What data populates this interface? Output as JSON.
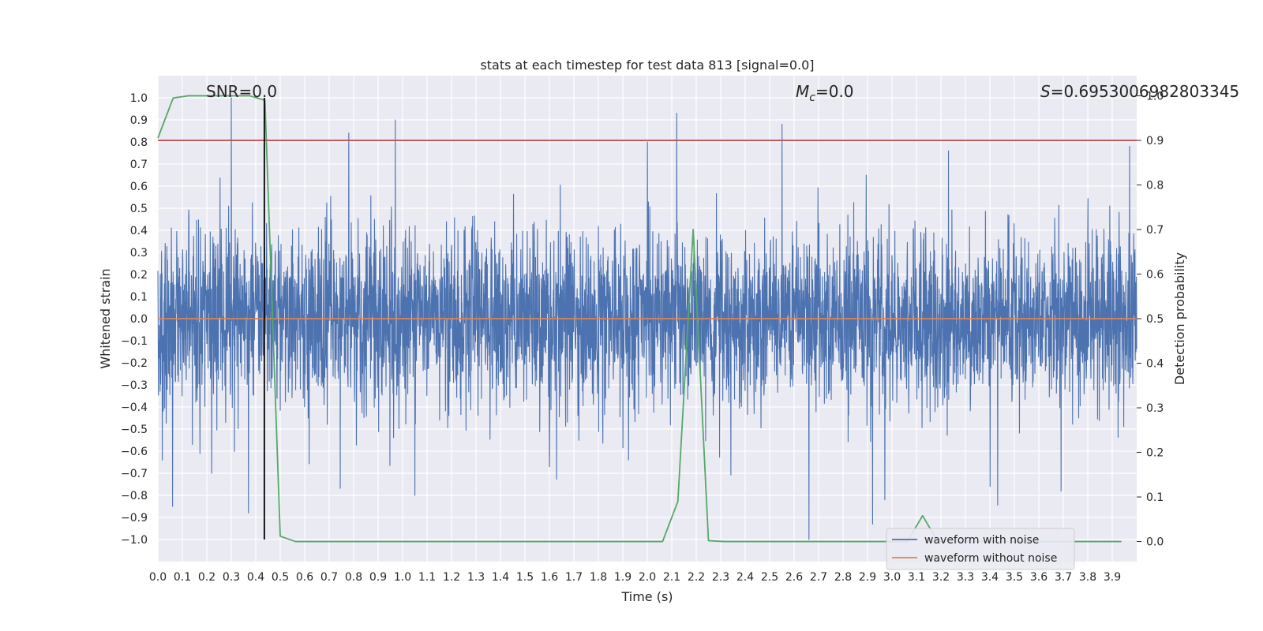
{
  "chart_data": {
    "type": "line",
    "title": "stats at each timestep for test data 813 [signal=0.0]",
    "xlabel": "Time (s)",
    "ylabel": "Whitened strain",
    "y2label": "Detection probability",
    "xlim": [
      0.0,
      4.0
    ],
    "ylim": [
      -1.1,
      1.1
    ],
    "y2lim": [
      -0.045,
      1.045
    ],
    "x_ticks": [
      0.0,
      0.1,
      0.2,
      0.3,
      0.4,
      0.5,
      0.6,
      0.7,
      0.8,
      0.9,
      1.0,
      1.1,
      1.2,
      1.3,
      1.4,
      1.5,
      1.6,
      1.7,
      1.8,
      1.9,
      2.0,
      2.1,
      2.2,
      2.3,
      2.4,
      2.5,
      2.6,
      2.7,
      2.8,
      2.9,
      3.0,
      3.1,
      3.2,
      3.3,
      3.4,
      3.5,
      3.6,
      3.7,
      3.8,
      3.9
    ],
    "x_tick_labels": [
      "0.0",
      "0.1",
      "0.2",
      "0.3",
      "0.4",
      "0.5",
      "0.6",
      "0.7",
      "0.8",
      "0.9",
      "1.0",
      "1.1",
      "1.2",
      "1.3",
      "1.4",
      "1.5",
      "1.6",
      "1.7",
      "1.8",
      "1.9",
      "2.0",
      "2.1",
      "2.2",
      "2.3",
      "2.4",
      "2.5",
      "2.6",
      "2.7",
      "2.8",
      "2.9",
      "3.0",
      "3.1",
      "3.2",
      "3.3",
      "3.4",
      "3.5",
      "3.6",
      "3.7",
      "3.8",
      "3.9"
    ],
    "y_ticks": [
      1.0,
      0.9,
      0.8,
      0.7,
      0.6,
      0.5,
      0.4,
      0.3,
      0.2,
      0.1,
      0.0,
      -0.1,
      -0.2,
      -0.3,
      -0.4,
      -0.5,
      -0.6,
      -0.7,
      -0.8,
      -0.9,
      -1.0
    ],
    "y_tick_labels": [
      "1.0",
      "0.9",
      "0.8",
      "0.7",
      "0.6",
      "0.5",
      "0.4",
      "0.3",
      "0.2",
      "0.1",
      "0.0",
      "−0.1",
      "−0.2",
      "−0.3",
      "−0.4",
      "−0.5",
      "−0.6",
      "−0.7",
      "−0.8",
      "−0.9",
      "−1.0"
    ],
    "y2_ticks": [
      1.0,
      0.9,
      0.8,
      0.7,
      0.6,
      0.5,
      0.4,
      0.3,
      0.2,
      0.1,
      0.0
    ],
    "y2_tick_labels": [
      "1.0",
      "0.9",
      "0.8",
      "0.7",
      "0.6",
      "0.5",
      "0.4",
      "0.3",
      "0.2",
      "0.1",
      "0.0"
    ],
    "annotations": {
      "snr": "SNR=0.0",
      "mc_symbol": "M",
      "mc_sub": "c",
      "mc_value": "=0.0",
      "s_symbol": "S",
      "s_value": "=0.6953006982803345"
    },
    "legend": {
      "placement": "lower-right",
      "entries": [
        {
          "label": "waveform with noise",
          "color": "#4c72b0"
        },
        {
          "label": "waveform without noise",
          "color": "#dd8452"
        }
      ]
    },
    "series": [
      {
        "name": "waveform with noise",
        "color": "#4c72b0",
        "axis": "left",
        "kind": "noise",
        "n": 4000,
        "seed": 813,
        "std": 0.2,
        "spikes": [
          [
            0.3,
            1.0
          ],
          [
            0.37,
            -0.88
          ],
          [
            0.78,
            0.84
          ],
          [
            0.97,
            0.9
          ],
          [
            1.05,
            -0.8
          ],
          [
            2.0,
            0.8
          ],
          [
            2.12,
            0.93
          ],
          [
            2.55,
            0.88
          ],
          [
            2.66,
            -1.0
          ],
          [
            2.92,
            -0.93
          ],
          [
            2.97,
            -0.82
          ],
          [
            3.23,
            0.76
          ],
          [
            3.69,
            -0.78
          ],
          [
            3.97,
            0.78
          ],
          [
            0.06,
            -0.85
          ],
          [
            0.22,
            -0.7
          ],
          [
            1.6,
            -0.67
          ],
          [
            3.4,
            -0.76
          ]
        ]
      },
      {
        "name": "waveform without noise",
        "color": "#dd8452",
        "axis": "left",
        "x": [
          0.0,
          4.0
        ],
        "y": [
          0.0,
          0.0
        ]
      },
      {
        "name": "detection probability",
        "color": "#55a868",
        "axis": "right",
        "x": [
          0.0,
          0.0625,
          0.125,
          0.1875,
          0.25,
          0.3125,
          0.375,
          0.4375,
          0.5,
          0.5625,
          0.625,
          0.6875,
          0.75,
          0.8125,
          0.875,
          0.9375,
          1.0,
          1.0625,
          1.125,
          1.1875,
          1.25,
          1.3125,
          1.375,
          1.4375,
          1.5,
          1.5625,
          1.625,
          1.6875,
          1.75,
          1.8125,
          1.875,
          1.9375,
          2.0,
          2.0625,
          2.125,
          2.1875,
          2.25,
          2.3125,
          2.375,
          2.4375,
          2.5,
          2.5625,
          2.625,
          2.6875,
          2.75,
          2.8125,
          2.875,
          2.9375,
          3.0,
          3.0625,
          3.125,
          3.1875,
          3.25,
          3.3125,
          3.375,
          3.4375,
          3.5,
          3.5625,
          3.625,
          3.6875,
          3.75,
          3.8125,
          3.875,
          3.9375
        ],
        "y": [
          0.905,
          0.995,
          1.0,
          1.0,
          1.0,
          1.0,
          1.0,
          0.99,
          0.012,
          0.0,
          0.0,
          0.0,
          0.0,
          0.0,
          0.0,
          0.0,
          0.0,
          0.0,
          0.0,
          0.0,
          0.0,
          0.0,
          0.0,
          0.0,
          0.0,
          0.0,
          0.0,
          0.0,
          0.0,
          0.0,
          0.0,
          0.0,
          0.0,
          0.0,
          0.09,
          0.7,
          0.002,
          0.0,
          0.0,
          0.0,
          0.0,
          0.0,
          0.0,
          0.0,
          0.0,
          0.0,
          0.0,
          0.0,
          0.0,
          0.0,
          0.058,
          0.0,
          0.0,
          0.0,
          0.0,
          0.0,
          0.0,
          0.0,
          0.0,
          0.0,
          0.0,
          0.0,
          0.0,
          0.0
        ]
      },
      {
        "name": "threshold",
        "color": "#c44e52",
        "axis": "right",
        "x": [
          0.0,
          4.0
        ],
        "y": [
          0.9,
          0.9
        ]
      },
      {
        "name": "marker",
        "color": "#000000",
        "axis": "left",
        "x": [
          0.435,
          0.435
        ],
        "y": [
          -1.0,
          1.0
        ]
      }
    ]
  }
}
